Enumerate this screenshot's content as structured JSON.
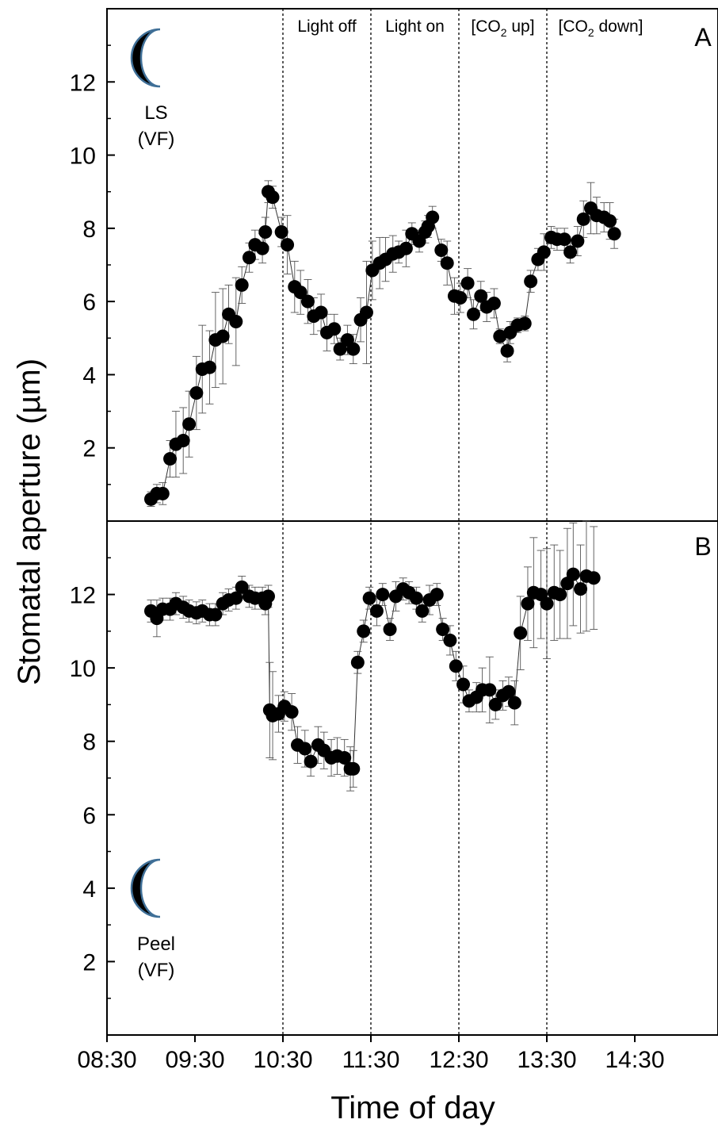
{
  "chart_data": [
    {
      "type": "scatter",
      "panel_letter": "A",
      "icon_label_lines": [
        "LS",
        "(VF)"
      ],
      "icon": "crescent-moon-icon",
      "xlabel": "Time of day",
      "ylabel": "Stomatal aperture (µm)",
      "ylim": [
        0,
        14
      ],
      "yticks": [
        2,
        4,
        6,
        8,
        10,
        12
      ],
      "xlim_hours": [
        8.5,
        15.5
      ],
      "xticks": [
        "08:30",
        "09:30",
        "10:30",
        "11:30",
        "12:30",
        "13:30",
        "14:30"
      ],
      "phase_lines": [
        "10:30",
        "11:30",
        "12:30",
        "13:30"
      ],
      "phases": [
        {
          "label": "Light off",
          "sub": "",
          "tail": ""
        },
        {
          "label": "Light on",
          "sub": "",
          "tail": ""
        },
        {
          "label": "[CO",
          "sub": "2",
          "tail": " up]"
        },
        {
          "label": "[CO",
          "sub": "2",
          "tail": " down]"
        }
      ],
      "series": [
        {
          "points": [
            [
              "09:00",
              0.6,
              0.2
            ],
            [
              "09:04",
              0.75,
              0.25
            ],
            [
              "09:08",
              0.75,
              0.3
            ],
            [
              "09:13",
              1.7,
              0.5
            ],
            [
              "09:17",
              2.1,
              0.9
            ],
            [
              "09:22",
              2.2,
              0.9
            ],
            [
              "09:26",
              2.65,
              0.9
            ],
            [
              "09:31",
              3.5,
              1.0
            ],
            [
              "09:35",
              4.15,
              1.2
            ],
            [
              "09:40",
              4.2,
              1.0
            ],
            [
              "09:44",
              4.95,
              1.3
            ],
            [
              "09:49",
              5.05,
              1.3
            ],
            [
              "09:53",
              5.65,
              0.8
            ],
            [
              "09:58",
              5.45,
              1.2
            ],
            [
              "10:02",
              6.45,
              0.5
            ],
            [
              "10:07",
              7.2,
              0.4
            ],
            [
              "10:11",
              7.55,
              0.4
            ],
            [
              "10:16",
              7.45,
              0.4
            ],
            [
              "10:18",
              7.9,
              0.4
            ],
            [
              "10:20",
              9.0,
              0.3
            ],
            [
              "10:23",
              8.85,
              0.3
            ],
            [
              "10:29",
              7.9,
              0.4
            ],
            [
              "10:33",
              7.55,
              0.8
            ],
            [
              "10:38",
              6.4,
              0.7
            ],
            [
              "10:42",
              6.25,
              0.6
            ],
            [
              "10:47",
              6.0,
              0.6
            ],
            [
              "10:51",
              5.6,
              0.5
            ],
            [
              "10:56",
              5.7,
              0.5
            ],
            [
              "11:00",
              5.15,
              0.5
            ],
            [
              "11:05",
              5.25,
              0.4
            ],
            [
              "11:09",
              4.7,
              0.3
            ],
            [
              "11:14",
              4.95,
              0.4
            ],
            [
              "11:18",
              4.7,
              0.4
            ],
            [
              "11:23",
              5.5,
              0.6
            ],
            [
              "11:27",
              5.7,
              1.4
            ],
            [
              "11:31",
              6.85,
              0.8
            ],
            [
              "11:36",
              7.05,
              0.7
            ],
            [
              "11:40",
              7.15,
              0.6
            ],
            [
              "11:45",
              7.3,
              0.5
            ],
            [
              "11:49",
              7.35,
              0.3
            ],
            [
              "11:54",
              7.45,
              0.5
            ],
            [
              "11:58",
              7.85,
              0.3
            ],
            [
              "12:03",
              7.65,
              0.3
            ],
            [
              "12:07",
              7.9,
              0.3
            ],
            [
              "12:09",
              8.05,
              0.3
            ],
            [
              "12:12",
              8.3,
              0.3
            ],
            [
              "12:18",
              7.4,
              0.3
            ],
            [
              "12:22",
              7.05,
              0.6
            ],
            [
              "12:27",
              6.15,
              0.5
            ],
            [
              "12:31",
              6.1,
              0.4
            ],
            [
              "12:36",
              6.5,
              0.4
            ],
            [
              "12:40",
              5.65,
              0.4
            ],
            [
              "12:45",
              6.15,
              0.4
            ],
            [
              "12:49",
              5.85,
              0.4
            ],
            [
              "12:54",
              5.95,
              0.4
            ],
            [
              "12:58",
              5.05,
              0.2
            ],
            [
              "13:03",
              4.65,
              0.3
            ],
            [
              "13:05",
              5.15,
              0.3
            ],
            [
              "13:10",
              5.35,
              0.2
            ],
            [
              "13:15",
              5.4,
              0.2
            ],
            [
              "13:19",
              6.55,
              0.3
            ],
            [
              "13:24",
              7.15,
              0.3
            ],
            [
              "13:28",
              7.35,
              0.5
            ],
            [
              "13:33",
              7.75,
              0.3
            ],
            [
              "13:37",
              7.7,
              0.3
            ],
            [
              "13:42",
              7.7,
              0.3
            ],
            [
              "13:46",
              7.35,
              0.3
            ],
            [
              "13:51",
              7.65,
              0.4
            ],
            [
              "13:55",
              8.25,
              0.5
            ],
            [
              "14:00",
              8.55,
              0.7
            ],
            [
              "14:04",
              8.35,
              0.5
            ],
            [
              "14:09",
              8.3,
              0.4
            ],
            [
              "14:13",
              8.2,
              0.5
            ],
            [
              "14:16",
              7.85,
              0.4
            ]
          ]
        }
      ]
    },
    {
      "type": "scatter",
      "panel_letter": "B",
      "icon_label_lines": [
        "Peel",
        "(VF)"
      ],
      "icon": "crescent-moon-icon",
      "ylim": [
        0,
        14
      ],
      "yticks": [
        2,
        4,
        6,
        8,
        10,
        12
      ],
      "series": [
        {
          "points": [
            [
              "09:00",
              11.55,
              0.3
            ],
            [
              "09:04",
              11.35,
              0.5
            ],
            [
              "09:08",
              11.6,
              0.3
            ],
            [
              "09:13",
              11.6,
              0.3
            ],
            [
              "09:17",
              11.75,
              0.3
            ],
            [
              "09:22",
              11.65,
              0.3
            ],
            [
              "09:26",
              11.55,
              0.3
            ],
            [
              "09:31",
              11.5,
              0.3
            ],
            [
              "09:35",
              11.55,
              0.3
            ],
            [
              "09:40",
              11.45,
              0.3
            ],
            [
              "09:44",
              11.45,
              0.3
            ],
            [
              "09:49",
              11.75,
              0.3
            ],
            [
              "09:53",
              11.85,
              0.3
            ],
            [
              "09:58",
              11.9,
              0.3
            ],
            [
              "10:02",
              12.2,
              0.3
            ],
            [
              "10:07",
              11.95,
              0.3
            ],
            [
              "10:11",
              11.9,
              0.3
            ],
            [
              "10:16",
              11.9,
              0.3
            ],
            [
              "10:18",
              11.75,
              0.3
            ],
            [
              "10:20",
              11.95,
              0.3
            ],
            [
              "10:21",
              8.85,
              1.3
            ],
            [
              "10:23",
              8.7,
              1.2
            ],
            [
              "10:27",
              8.75,
              0.5
            ],
            [
              "10:31",
              8.95,
              0.4
            ],
            [
              "10:36",
              8.8,
              0.5
            ],
            [
              "10:40",
              7.9,
              0.5
            ],
            [
              "10:45",
              7.8,
              0.5
            ],
            [
              "10:49",
              7.45,
              0.4
            ],
            [
              "10:54",
              7.9,
              0.5
            ],
            [
              "10:58",
              7.75,
              0.5
            ],
            [
              "11:03",
              7.55,
              0.5
            ],
            [
              "11:07",
              7.6,
              0.5
            ],
            [
              "11:12",
              7.55,
              0.5
            ],
            [
              "11:16",
              7.25,
              0.6
            ],
            [
              "11:18",
              7.25,
              0.5
            ],
            [
              "11:21",
              10.15,
              0.3
            ],
            [
              "11:25",
              11.0,
              0.3
            ],
            [
              "11:29",
              11.9,
              0.3
            ],
            [
              "11:34",
              11.55,
              0.4
            ],
            [
              "11:38",
              12.0,
              0.3
            ],
            [
              "11:43",
              11.05,
              0.3
            ],
            [
              "11:47",
              11.95,
              0.4
            ],
            [
              "11:52",
              12.15,
              0.3
            ],
            [
              "11:56",
              12.05,
              0.3
            ],
            [
              "12:01",
              11.9,
              0.3
            ],
            [
              "12:05",
              11.55,
              0.3
            ],
            [
              "12:10",
              11.85,
              0.4
            ],
            [
              "12:15",
              12.0,
              0.3
            ],
            [
              "12:19",
              11.05,
              0.3
            ],
            [
              "12:24",
              10.75,
              0.4
            ],
            [
              "12:28",
              10.05,
              0.4
            ],
            [
              "12:33",
              9.55,
              0.5
            ],
            [
              "12:37",
              9.1,
              0.3
            ],
            [
              "12:42",
              9.2,
              0.4
            ],
            [
              "12:46",
              9.4,
              0.6
            ],
            [
              "12:51",
              9.4,
              0.9
            ],
            [
              "12:55",
              9.0,
              0.4
            ],
            [
              "13:00",
              9.25,
              0.4
            ],
            [
              "13:04",
              9.35,
              0.4
            ],
            [
              "13:08",
              9.05,
              0.6
            ],
            [
              "13:12",
              10.95,
              1.0
            ],
            [
              "13:17",
              11.75,
              1.0
            ],
            [
              "13:21",
              12.05,
              1.5
            ],
            [
              "13:26",
              12.0,
              1.2
            ],
            [
              "13:30",
              11.75,
              1.5
            ],
            [
              "13:35",
              12.05,
              1.3
            ],
            [
              "13:39",
              12.0,
              1.2
            ],
            [
              "13:44",
              12.3,
              1.5
            ],
            [
              "13:48",
              12.55,
              1.4
            ],
            [
              "13:53",
              12.15,
              1.2
            ],
            [
              "13:57",
              12.5,
              1.5
            ],
            [
              "14:02",
              12.45,
              1.4
            ]
          ]
        }
      ]
    }
  ]
}
